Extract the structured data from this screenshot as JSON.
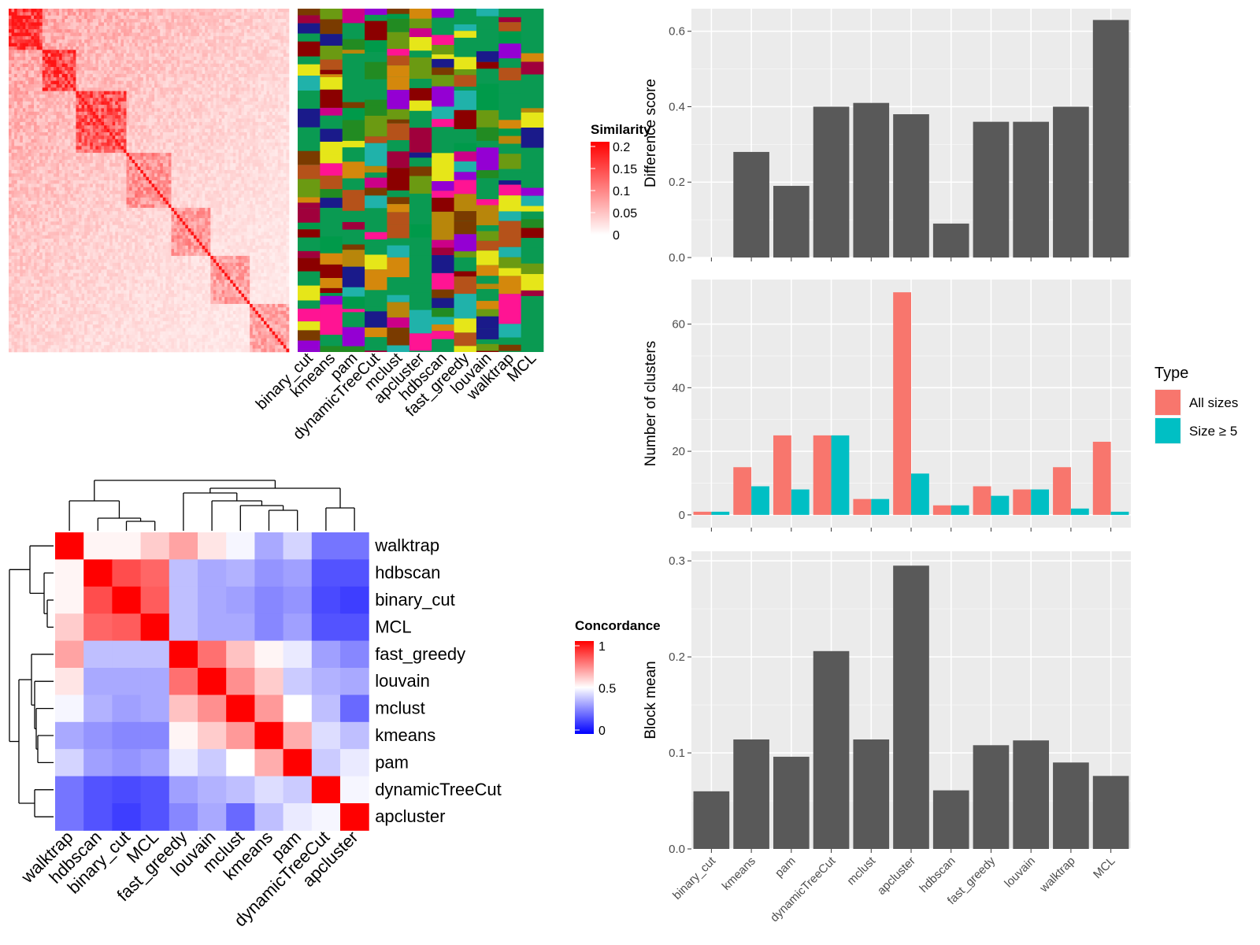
{
  "panels": {
    "top_left": {
      "legend_title": "Similarity",
      "legend_ticks": [
        "0.2",
        "0.15",
        "0.1",
        "0.05",
        "0"
      ],
      "method_labels": [
        "binary_cut",
        "kmeans",
        "pam",
        "dynamicTreeCut",
        "mclust",
        "apcluster",
        "hdbscan",
        "fast_greedy",
        "louvain",
        "walktrap",
        "MCL"
      ]
    },
    "bottom_left": {
      "legend_title": "Concordance",
      "legend_ticks": [
        "1",
        "0.5",
        "0"
      ],
      "methods": [
        "walktrap",
        "hdbscan",
        "binary_cut",
        "MCL",
        "fast_greedy",
        "louvain",
        "mclust",
        "kmeans",
        "pam",
        "dynamicTreeCut",
        "apcluster"
      ]
    },
    "right": {
      "x_categories": [
        "binary_cut",
        "kmeans",
        "pam",
        "dynamicTreeCut",
        "mclust",
        "apcluster",
        "hdbscan",
        "fast_greedy",
        "louvain",
        "walktrap",
        "MCL"
      ]
    }
  },
  "chart_data": [
    {
      "type": "heatmap",
      "name": "similarity-heatmap",
      "legend_title": "Similarity",
      "value_range": [
        0,
        0.2
      ],
      "columns": [
        "binary_cut",
        "kmeans",
        "pam",
        "dynamicTreeCut",
        "mclust",
        "apcluster",
        "hdbscan",
        "fast_greedy",
        "louvain",
        "walktrap",
        "MCL"
      ]
    },
    {
      "type": "heatmap",
      "name": "concordance-heatmap",
      "legend_title": "Concordance",
      "value_range": [
        0,
        1
      ],
      "rows": [
        "walktrap",
        "hdbscan",
        "binary_cut",
        "MCL",
        "fast_greedy",
        "louvain",
        "mclust",
        "kmeans",
        "pam",
        "dynamicTreeCut",
        "apcluster"
      ],
      "columns": [
        "walktrap",
        "hdbscan",
        "binary_cut",
        "MCL",
        "fast_greedy",
        "louvain",
        "mclust",
        "kmeans",
        "pam",
        "dynamicTreeCut",
        "apcluster"
      ],
      "values": [
        [
          1.0,
          0.52,
          0.52,
          0.6,
          0.68,
          0.55,
          0.48,
          0.3,
          0.4,
          0.18,
          0.18
        ],
        [
          0.52,
          1.0,
          0.85,
          0.8,
          0.35,
          0.3,
          0.32,
          0.25,
          0.28,
          0.1,
          0.1
        ],
        [
          0.52,
          0.85,
          1.0,
          0.82,
          0.35,
          0.3,
          0.28,
          0.22,
          0.25,
          0.08,
          0.05
        ],
        [
          0.6,
          0.8,
          0.82,
          1.0,
          0.35,
          0.3,
          0.3,
          0.22,
          0.28,
          0.1,
          0.1
        ],
        [
          0.68,
          0.35,
          0.35,
          0.35,
          1.0,
          0.78,
          0.62,
          0.52,
          0.45,
          0.28,
          0.22
        ],
        [
          0.55,
          0.3,
          0.3,
          0.3,
          0.78,
          1.0,
          0.72,
          0.6,
          0.38,
          0.32,
          0.3
        ],
        [
          0.48,
          0.32,
          0.28,
          0.3,
          0.62,
          0.72,
          1.0,
          0.7,
          0.5,
          0.35,
          0.15
        ],
        [
          0.3,
          0.25,
          0.22,
          0.22,
          0.52,
          0.6,
          0.7,
          1.0,
          0.66,
          0.42,
          0.35
        ],
        [
          0.4,
          0.28,
          0.25,
          0.28,
          0.45,
          0.38,
          0.5,
          0.66,
          1.0,
          0.38,
          0.45
        ],
        [
          0.18,
          0.1,
          0.08,
          0.1,
          0.28,
          0.32,
          0.35,
          0.42,
          0.38,
          1.0,
          0.48
        ],
        [
          0.18,
          0.1,
          0.05,
          0.1,
          0.22,
          0.3,
          0.15,
          0.35,
          0.45,
          0.48,
          1.0
        ]
      ]
    },
    {
      "type": "bar",
      "name": "difference-score",
      "ylabel": "Difference score",
      "categories": [
        "binary_cut",
        "kmeans",
        "pam",
        "dynamicTreeCut",
        "mclust",
        "apcluster",
        "hdbscan",
        "fast_greedy",
        "louvain",
        "walktrap",
        "MCL"
      ],
      "values": [
        0.0,
        0.28,
        0.19,
        0.4,
        0.41,
        0.38,
        0.09,
        0.36,
        0.36,
        0.4,
        0.63
      ],
      "ylim": [
        0,
        0.66
      ],
      "yticks": [
        0.0,
        0.2,
        0.4,
        0.6
      ],
      "ytick_labels": [
        "0.0",
        "0.2",
        "0.4",
        "0.6"
      ],
      "color": "#595959"
    },
    {
      "type": "bar",
      "name": "number-of-clusters",
      "ylabel": "Number of clusters",
      "categories": [
        "binary_cut",
        "kmeans",
        "pam",
        "dynamicTreeCut",
        "mclust",
        "apcluster",
        "hdbscan",
        "fast_greedy",
        "louvain",
        "walktrap",
        "MCL"
      ],
      "series": [
        {
          "name": "All sizes",
          "color": "#F8766D",
          "values": [
            1,
            15,
            25,
            25,
            5,
            70,
            3,
            9,
            8,
            15,
            23
          ]
        },
        {
          "name": "Size ≥ 5",
          "color": "#00BFC4",
          "values": [
            1,
            9,
            8,
            25,
            5,
            13,
            3,
            6,
            8,
            2,
            1
          ]
        }
      ],
      "ylim": [
        -4,
        74
      ],
      "yticks": [
        0,
        20,
        40,
        60
      ],
      "ytick_labels": [
        "0",
        "20",
        "40",
        "60"
      ],
      "legend_title": "Type",
      "legend_position": "right"
    },
    {
      "type": "bar",
      "name": "block-mean",
      "ylabel": "Block mean",
      "categories": [
        "binary_cut",
        "kmeans",
        "pam",
        "dynamicTreeCut",
        "mclust",
        "apcluster",
        "hdbscan",
        "fast_greedy",
        "louvain",
        "walktrap",
        "MCL"
      ],
      "values": [
        0.06,
        0.114,
        0.096,
        0.206,
        0.114,
        0.295,
        0.061,
        0.108,
        0.113,
        0.09,
        0.076
      ],
      "ylim": [
        0,
        0.31
      ],
      "yticks": [
        0.0,
        0.1,
        0.2,
        0.3
      ],
      "ytick_labels": [
        "0.0",
        "0.1",
        "0.2",
        "0.3"
      ],
      "color": "#595959"
    }
  ]
}
